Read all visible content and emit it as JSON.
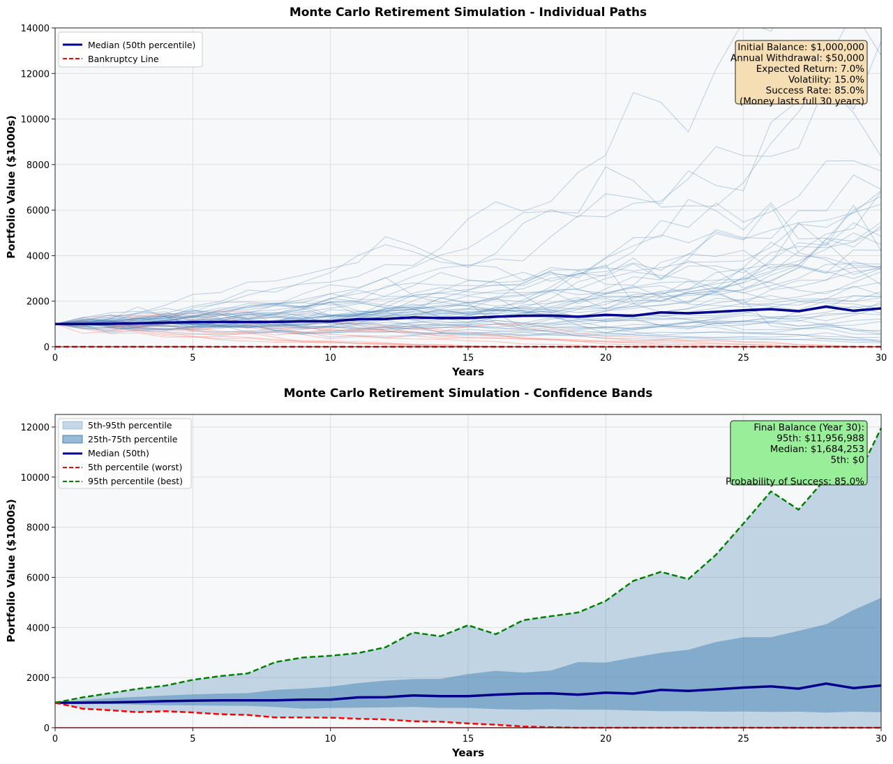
{
  "chart_data": [
    {
      "type": "line",
      "title": "Monte Carlo Retirement Simulation - Individual Paths",
      "xlabel": "Years",
      "ylabel": "Portfolio Value ($1000s)",
      "xlim": [
        0,
        30
      ],
      "ylim": [
        0,
        14000
      ],
      "xticks": [
        0,
        5,
        10,
        15,
        20,
        25,
        30
      ],
      "yticks": [
        0,
        2000,
        4000,
        6000,
        8000,
        10000,
        12000,
        14000
      ],
      "grid": true,
      "legend_placement": "top-left",
      "legend": [
        "Median (50th percentile)",
        "Bankruptcy Line"
      ],
      "colors": {
        "success_paths": "#4682b4",
        "failed_paths": "#fa8072",
        "median": "#00008b",
        "bankruptcy": "#ff0000"
      },
      "annotation": [
        "Initial Balance: $1,000,000",
        "Annual Withdrawal: $50,000",
        "Expected Return: 7.0%",
        "Volatility: 15.0%",
        "Success Rate: 85.0%",
        "(Money lasts full 30 years)"
      ],
      "annotation_bg": "#f5deb3"
    },
    {
      "type": "area",
      "title": "Monte Carlo Retirement Simulation - Confidence Bands",
      "xlabel": "Years",
      "ylabel": "Portfolio Value ($1000s)",
      "xlim": [
        0,
        30
      ],
      "ylim": [
        0,
        12500
      ],
      "xticks": [
        0,
        5,
        10,
        15,
        20,
        25,
        30
      ],
      "yticks": [
        0,
        2000,
        4000,
        6000,
        8000,
        10000,
        12000
      ],
      "grid": true,
      "legend_placement": "top-left",
      "x": [
        0,
        1,
        2,
        3,
        4,
        5,
        6,
        7,
        8,
        9,
        10,
        11,
        12,
        13,
        14,
        15,
        16,
        17,
        18,
        19,
        20,
        21,
        22,
        23,
        24,
        25,
        26,
        27,
        28,
        29,
        30
      ],
      "series": [
        {
          "name": "5th-95th percentile",
          "kind": "band",
          "color": "#4682b4",
          "lower_key": "p5",
          "upper_key": "p95"
        },
        {
          "name": "25th-75th percentile",
          "kind": "band",
          "color": "#4682b4",
          "lower_key": "p25",
          "upper_key": "p75"
        },
        {
          "name": "Median (50th)",
          "kind": "line",
          "color": "#00008b",
          "key": "p50"
        },
        {
          "name": "5th percentile (worst)",
          "kind": "dashed",
          "color": "#ff0000",
          "key": "p5"
        },
        {
          "name": "95th percentile (best)",
          "kind": "dashed",
          "color": "#008000",
          "key": "p95"
        }
      ],
      "values": {
        "p5": [
          1000,
          760,
          700,
          620,
          660,
          610,
          540,
          510,
          410,
          410,
          400,
          360,
          330,
          260,
          240,
          170,
          120,
          50,
          20,
          0,
          0,
          0,
          0,
          0,
          0,
          0,
          0,
          0,
          0,
          0,
          0
        ],
        "p25": [
          1000,
          970,
          950,
          920,
          900,
          890,
          880,
          870,
          830,
          760,
          790,
          800,
          810,
          830,
          790,
          790,
          740,
          720,
          740,
          720,
          720,
          690,
          660,
          660,
          640,
          650,
          630,
          640,
          600,
          640,
          620
        ],
        "p50": [
          1000,
          1000,
          1010,
          1030,
          1060,
          1080,
          1090,
          1090,
          1090,
          1120,
          1120,
          1210,
          1220,
          1290,
          1260,
          1260,
          1320,
          1360,
          1370,
          1320,
          1400,
          1360,
          1510,
          1470,
          1530,
          1600,
          1650,
          1560,
          1760,
          1580,
          1684
        ],
        "p75": [
          1000,
          1100,
          1180,
          1230,
          1280,
          1330,
          1360,
          1380,
          1510,
          1560,
          1640,
          1780,
          1880,
          1940,
          1950,
          2140,
          2270,
          2200,
          2280,
          2620,
          2600,
          2800,
          2990,
          3110,
          3420,
          3610,
          3610,
          3860,
          4130,
          4700,
          5180
        ],
        "p95": [
          1000,
          1210,
          1380,
          1550,
          1680,
          1910,
          2060,
          2170,
          2620,
          2800,
          2870,
          2980,
          3210,
          3800,
          3650,
          4090,
          3730,
          4290,
          4450,
          4600,
          5060,
          5860,
          6220,
          5930,
          6900,
          8150,
          9430,
          8700,
          9960,
          9700,
          11957
        ]
      },
      "annotation": [
        "Final Balance (Year 30):",
        "95th: $11,956,988",
        "Median: $1,684,253",
        "5th: $0",
        "",
        "Probability of Success: 85.0%"
      ],
      "annotation_bg": "#98ee99"
    }
  ]
}
